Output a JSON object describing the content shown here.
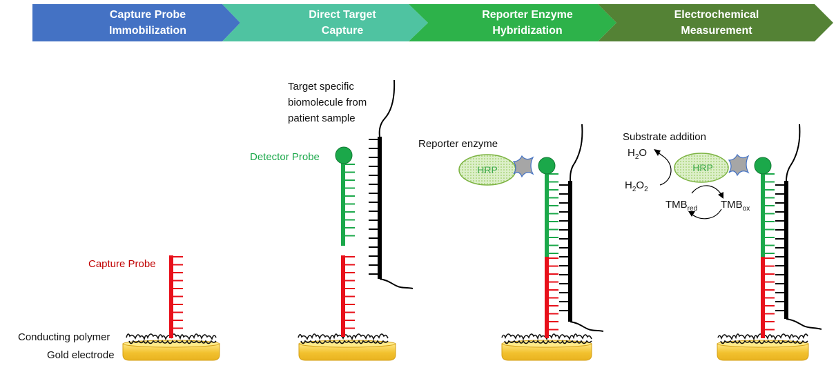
{
  "steps": [
    {
      "line1": "Capture Probe",
      "line2": "Immobilization",
      "color": "#4472C4"
    },
    {
      "line1": "Direct Target",
      "line2": "Capture",
      "color": "#4FC3A1"
    },
    {
      "line1": "Reporter Enzyme",
      "line2": "Hybridization",
      "color": "#2DB24A"
    },
    {
      "line1": "Electrochemical",
      "line2": "Measurement",
      "color": "#548235"
    }
  ],
  "labels": {
    "capture_probe": "Capture Probe",
    "conducting_polymer": "Conducting polymer",
    "gold_electrode": "Gold electrode",
    "target_line1": "Target specific",
    "target_line2": "biomolecule from",
    "target_line3": "patient sample",
    "detector_probe": "Detector Probe",
    "reporter_enzyme": "Reporter enzyme",
    "hrp": "HRP",
    "substrate_addition": "Substrate addition",
    "h2o_base": "H",
    "h2o_sub": "2",
    "h2o_tail": "O",
    "h2o2_base": "H",
    "h2o2_sub1": "2",
    "h2o2_mid": "O",
    "h2o2_sub2": "2",
    "tmb_red_base": "TMB",
    "tmb_red_sub": "red",
    "tmb_ox_base": "TMB",
    "tmb_ox_sub": "ox"
  },
  "colors": {
    "capture": "#E8101A",
    "detector": "#1BA84A",
    "target": "#000000",
    "gold": "#F5C842",
    "hrp_fill": "#D8EFC4",
    "hrp_edge": "#7CB342",
    "hrp_text": "#3CA84A",
    "connector": "#A6A6A6",
    "connector_edge": "#4472C4",
    "detector_label": "#1BA84A",
    "capture_label": "#C00000"
  }
}
